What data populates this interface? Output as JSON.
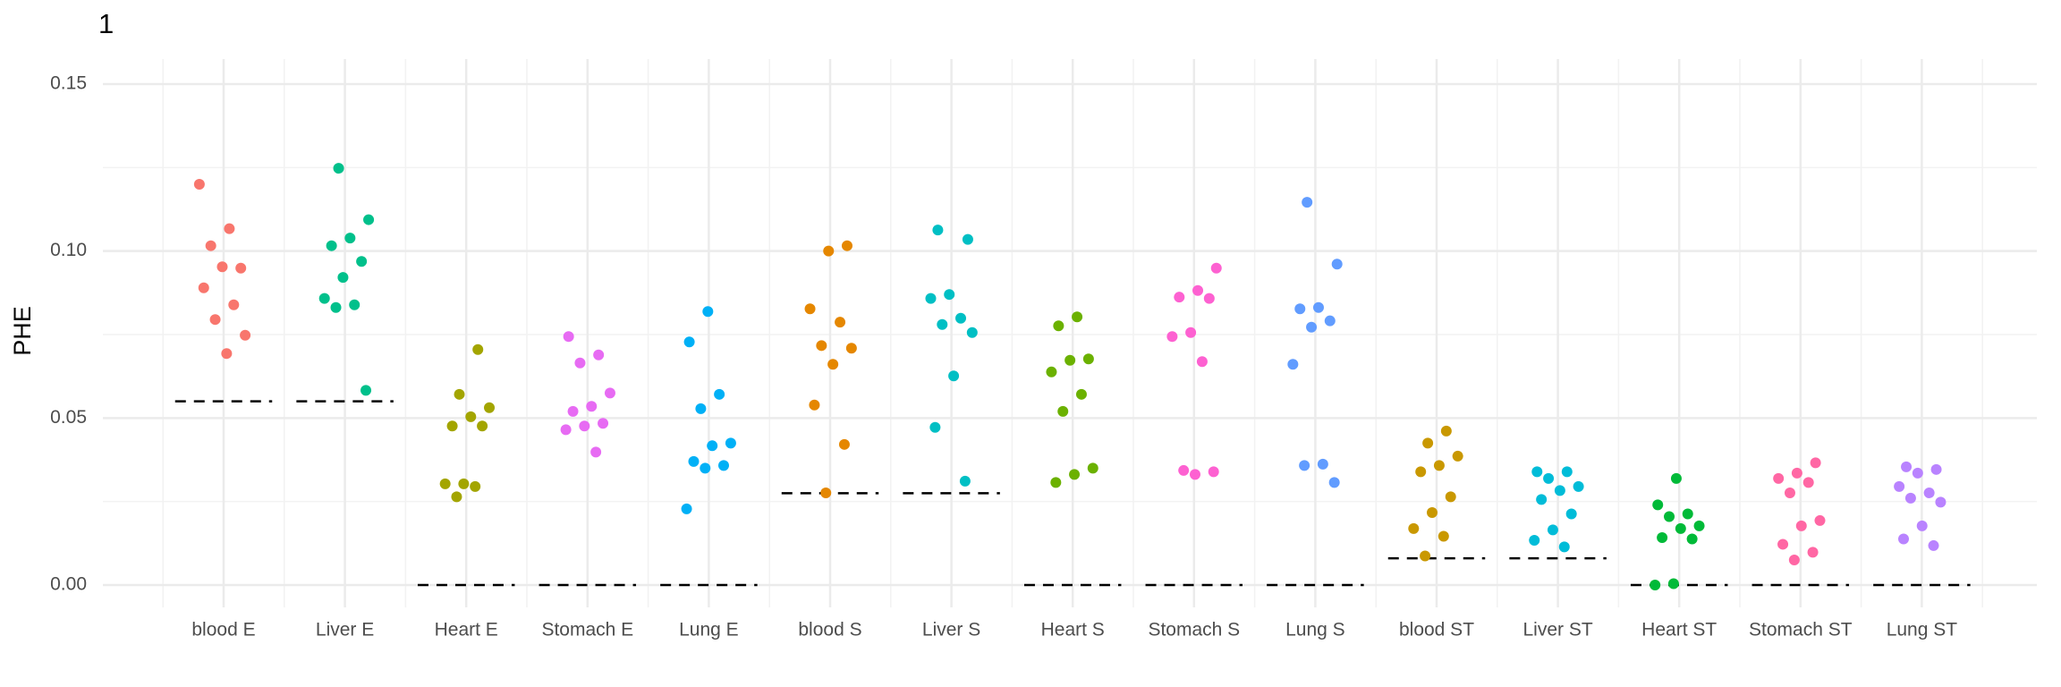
{
  "chart_data": {
    "type": "strip",
    "title": "1",
    "y_label": "PHE",
    "categories": [
      "blood E",
      "Liver E",
      "Heart E",
      "Stomach E",
      "Lung E",
      "blood S",
      "Liver S",
      "Heart S",
      "Stomach S",
      "Lung S",
      "blood ST",
      "Liver ST",
      "Heart ST",
      "Stomach ST",
      "Lung ST"
    ],
    "colors": [
      "#F8766D",
      "#00C08B",
      "#A3A500",
      "#E76BF3",
      "#00B0F6",
      "#E58700",
      "#00BFC4",
      "#6BB100",
      "#FD61D1",
      "#619CFF",
      "#C99800",
      "#00BCD8",
      "#00BA38",
      "#FF67A4",
      "#B983FF"
    ],
    "values": [
      [
        0.12,
        0.1067,
        0.1016,
        0.0949,
        0.0953,
        0.089,
        0.0839,
        0.0795,
        0.0748,
        0.0693
      ],
      [
        0.1248,
        0.1094,
        0.1039,
        0.1016,
        0.0969,
        0.0921,
        0.0858,
        0.0839,
        0.0831,
        0.0583
      ],
      [
        0.0705,
        0.0571,
        0.0531,
        0.0504,
        0.0476,
        0.0476,
        0.0303,
        0.0303,
        0.0295,
        0.0264
      ],
      [
        0.0744,
        0.0689,
        0.0665,
        0.0575,
        0.0535,
        0.052,
        0.0484,
        0.0476,
        0.0465,
        0.0398
      ],
      [
        0.0819,
        0.0728,
        0.0571,
        0.0528,
        0.0425,
        0.0417,
        0.037,
        0.0358,
        0.035,
        0.0228
      ],
      [
        0.1016,
        0.1,
        0.0827,
        0.0787,
        0.0717,
        0.0709,
        0.0661,
        0.0539,
        0.0421,
        0.0276
      ],
      [
        0.1063,
        0.1035,
        0.087,
        0.0858,
        0.0799,
        0.078,
        0.0756,
        0.0626,
        0.0472,
        0.0311
      ],
      [
        0.0803,
        0.0776,
        0.0677,
        0.0673,
        0.0638,
        0.0571,
        0.052,
        0.035,
        0.0331,
        0.0307
      ],
      [
        0.0949,
        0.0882,
        0.0862,
        0.0858,
        0.0756,
        0.0744,
        0.0669,
        0.0343,
        0.0339,
        0.0331
      ],
      [
        0.1146,
        0.0961,
        0.0831,
        0.0827,
        0.0791,
        0.0772,
        0.0661,
        0.0362,
        0.0358,
        0.0307
      ],
      [
        0.0461,
        0.0425,
        0.0386,
        0.0358,
        0.0339,
        0.0264,
        0.0217,
        0.0169,
        0.0146,
        0.0087
      ],
      [
        0.0339,
        0.0339,
        0.0319,
        0.0295,
        0.0283,
        0.0256,
        0.0213,
        0.0165,
        0.0134,
        0.0114
      ],
      [
        0.0319,
        0.024,
        0.0213,
        0.0205,
        0.0177,
        0.0169,
        0.0142,
        0.0138,
        0.0004,
        0
      ],
      [
        0.0366,
        0.0335,
        0.0319,
        0.0307,
        0.0276,
        0.0193,
        0.0177,
        0.0122,
        0.0098,
        0.0075
      ],
      [
        0.0354,
        0.0346,
        0.0335,
        0.0295,
        0.0276,
        0.026,
        0.0248,
        0.0177,
        0.0138,
        0.0118
      ]
    ],
    "reference_values": [
      0.055,
      0.055,
      0,
      0,
      0,
      0.0275,
      0.0275,
      0,
      0,
      0,
      0.008,
      0.008,
      0,
      0,
      0
    ],
    "ylim": [
      -0.0067,
      0.1575
    ],
    "yticks": [
      {
        "value": 0,
        "label": "0.00"
      },
      0.05,
      {
        "value": 0.1,
        "label": "0.10"
      },
      0.15
    ],
    "grid": true
  }
}
